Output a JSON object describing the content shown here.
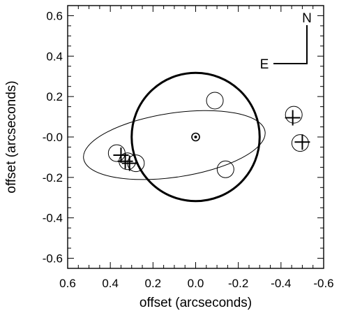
{
  "chart_data": {
    "type": "scatter",
    "xlabel": "offset (arcseconds)",
    "ylabel": "offset (arcseconds)",
    "xlim": [
      0.6,
      -0.6
    ],
    "ylim": [
      -0.65,
      0.65
    ],
    "x_ticks": [
      0.6,
      0.4,
      0.2,
      0.0,
      -0.2,
      -0.4,
      -0.6
    ],
    "x_tick_labels": [
      "0.6",
      "0.4",
      "0.2",
      "0.0",
      "-0.2",
      "-0.4",
      "-0.6"
    ],
    "y_ticks": [
      0.6,
      0.4,
      0.2,
      0.0,
      -0.2,
      -0.4,
      -0.6
    ],
    "y_tick_labels": [
      "0.6",
      "0.4",
      "0.2",
      "-0.0",
      "-0.2",
      "-0.4",
      "-0.6"
    ],
    "orientation": {
      "north_label": "N",
      "east_label": "E"
    },
    "central_star": {
      "x": 0.0,
      "y": 0.0
    },
    "large_circle": {
      "cx": 0.0,
      "cy": 0.0,
      "r": 0.3
    },
    "orbit_ellipse": {
      "cx": 0.1,
      "cy": -0.04,
      "a": 0.43,
      "b": 0.15,
      "rotation_deg": 8.5
    },
    "open_circles": [
      {
        "x": -0.09,
        "y": 0.18
      },
      {
        "x": -0.46,
        "y": 0.11
      },
      {
        "x": -0.49,
        "y": -0.03
      },
      {
        "x": -0.14,
        "y": -0.16
      },
      {
        "x": 0.37,
        "y": -0.08
      },
      {
        "x": 0.32,
        "y": -0.12
      },
      {
        "x": 0.28,
        "y": -0.13
      }
    ],
    "observations": [
      {
        "x": -0.455,
        "y": 0.095
      },
      {
        "x": -0.5,
        "y": -0.025
      },
      {
        "x": 0.35,
        "y": -0.09
      },
      {
        "x": 0.33,
        "y": -0.12
      },
      {
        "x": 0.31,
        "y": -0.13
      }
    ]
  }
}
